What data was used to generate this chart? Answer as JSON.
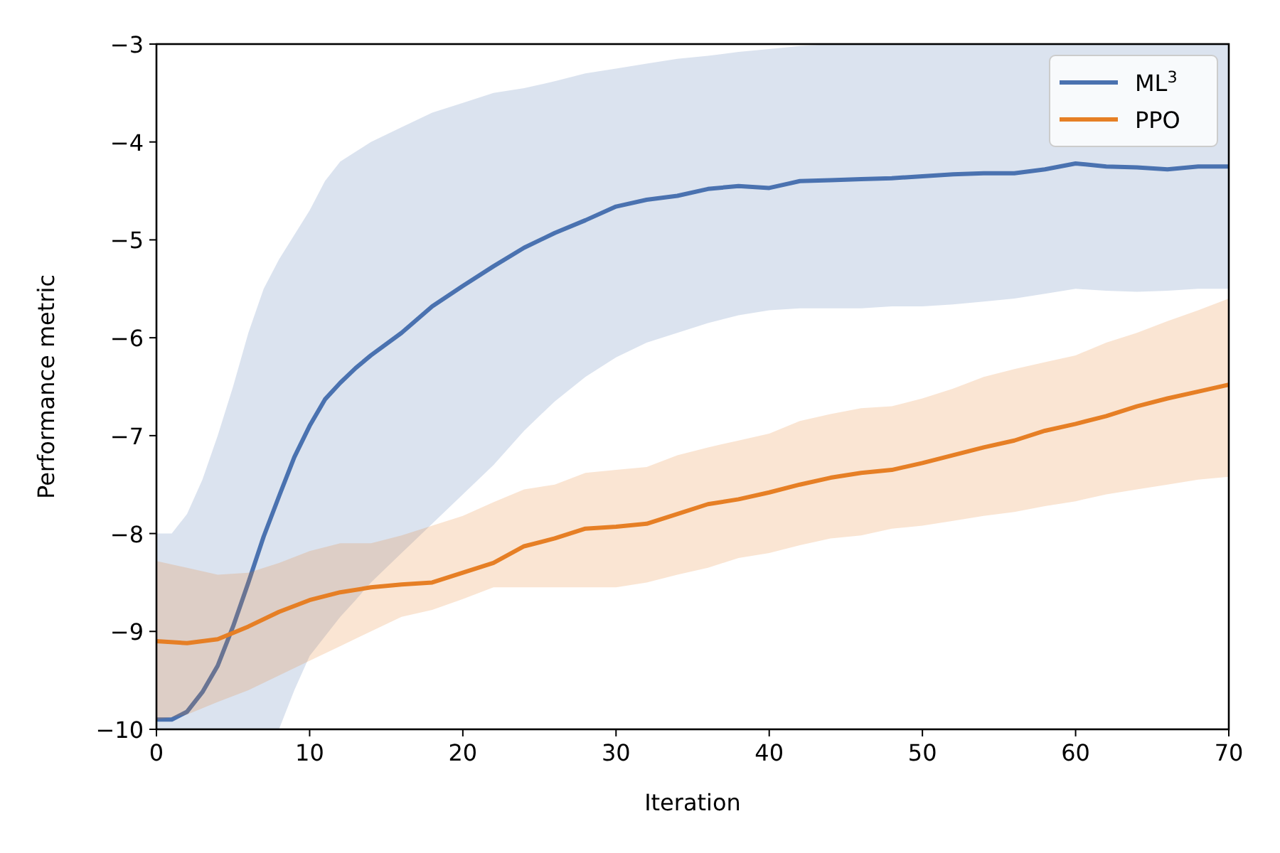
{
  "chart_data": {
    "type": "line",
    "xlabel": "Iteration",
    "ylabel": "Performance metric",
    "xlim": [
      0,
      70
    ],
    "ylim": [
      -10,
      -3
    ],
    "xticks": [
      0,
      10,
      20,
      30,
      40,
      50,
      60,
      70
    ],
    "yticks": [
      -10,
      -9,
      -8,
      -7,
      -6,
      -5,
      -4,
      -3
    ],
    "grid": false,
    "legend": "top right",
    "marker": "none",
    "line_style": "solid",
    "series": [
      {
        "name": "ML$^{3}$",
        "color": "#4a72b0",
        "x": [
          0,
          1,
          2,
          3,
          4,
          5,
          6,
          7,
          8,
          9,
          10,
          11,
          12,
          13,
          14,
          16,
          18,
          20,
          22,
          24,
          26,
          28,
          30,
          32,
          34,
          36,
          38,
          40,
          42,
          44,
          46,
          48,
          50,
          52,
          54,
          56,
          58,
          60,
          62,
          64,
          66,
          68,
          70
        ],
        "values": [
          -9.9,
          -9.9,
          -9.82,
          -9.62,
          -9.35,
          -8.95,
          -8.5,
          -8.03,
          -7.62,
          -7.22,
          -6.9,
          -6.63,
          -6.46,
          -6.31,
          -6.18,
          -5.95,
          -5.68,
          -5.47,
          -5.27,
          -5.08,
          -4.93,
          -4.8,
          -4.66,
          -4.59,
          -4.55,
          -4.48,
          -4.45,
          -4.47,
          -4.4,
          -4.39,
          -4.38,
          -4.37,
          -4.35,
          -4.33,
          -4.32,
          -4.32,
          -4.28,
          -4.22,
          -4.25,
          -4.26,
          -4.28,
          -4.25,
          -4.25
        ],
        "upper": [
          -8.0,
          -8.0,
          -7.8,
          -7.45,
          -7.0,
          -6.5,
          -5.95,
          -5.5,
          -5.2,
          -4.95,
          -4.7,
          -4.4,
          -4.2,
          -4.1,
          -4.0,
          -3.85,
          -3.7,
          -3.6,
          -3.5,
          -3.45,
          -3.38,
          -3.3,
          -3.25,
          -3.2,
          -3.15,
          -3.12,
          -3.08,
          -3.05,
          -3.02,
          -3.0,
          -3.0,
          -3.0,
          -3.0,
          -3.0,
          -3.0,
          -3.0,
          -3.0,
          -3.0,
          -3.0,
          -3.0,
          -3.0,
          -3.0,
          -3.0
        ],
        "lower": [
          -10,
          -10,
          -10,
          -10,
          -10,
          -10,
          -10,
          -10,
          -10,
          -9.6,
          -9.25,
          -9.05,
          -8.85,
          -8.68,
          -8.5,
          -8.2,
          -7.9,
          -7.6,
          -7.3,
          -6.95,
          -6.65,
          -6.4,
          -6.2,
          -6.05,
          -5.95,
          -5.85,
          -5.77,
          -5.72,
          -5.7,
          -5.7,
          -5.7,
          -5.68,
          -5.68,
          -5.66,
          -5.63,
          -5.6,
          -5.55,
          -5.5,
          -5.52,
          -5.53,
          -5.52,
          -5.5,
          -5.5
        ]
      },
      {
        "name": "PPO",
        "color": "#e67f25",
        "x": [
          0,
          2,
          4,
          6,
          8,
          10,
          12,
          14,
          16,
          18,
          20,
          22,
          24,
          26,
          28,
          30,
          32,
          34,
          36,
          38,
          40,
          42,
          44,
          46,
          48,
          50,
          52,
          54,
          56,
          58,
          60,
          62,
          64,
          66,
          68,
          70
        ],
        "values": [
          -9.1,
          -9.12,
          -9.08,
          -8.95,
          -8.8,
          -8.68,
          -8.6,
          -8.55,
          -8.52,
          -8.5,
          -8.4,
          -8.3,
          -8.13,
          -8.05,
          -7.95,
          -7.93,
          -7.9,
          -7.8,
          -7.7,
          -7.65,
          -7.58,
          -7.5,
          -7.43,
          -7.38,
          -7.35,
          -7.28,
          -7.2,
          -7.12,
          -7.05,
          -6.95,
          -6.88,
          -6.8,
          -6.7,
          -6.62,
          -6.55,
          -6.48
        ],
        "upper": [
          -8.28,
          -8.35,
          -8.42,
          -8.4,
          -8.3,
          -8.18,
          -8.1,
          -8.1,
          -8.02,
          -7.92,
          -7.82,
          -7.68,
          -7.55,
          -7.5,
          -7.38,
          -7.35,
          -7.32,
          -7.2,
          -7.12,
          -7.05,
          -6.98,
          -6.85,
          -6.78,
          -6.72,
          -6.7,
          -6.62,
          -6.52,
          -6.4,
          -6.32,
          -6.25,
          -6.18,
          -6.05,
          -5.95,
          -5.83,
          -5.72,
          -5.6
        ],
        "lower": [
          -9.9,
          -9.85,
          -9.72,
          -9.6,
          -9.45,
          -9.3,
          -9.15,
          -9.0,
          -8.85,
          -8.78,
          -8.67,
          -8.55,
          -8.55,
          -8.55,
          -8.55,
          -8.55,
          -8.5,
          -8.42,
          -8.35,
          -8.25,
          -8.2,
          -8.12,
          -8.05,
          -8.02,
          -7.95,
          -7.92,
          -7.87,
          -7.82,
          -7.78,
          -7.72,
          -7.67,
          -7.6,
          -7.55,
          -7.5,
          -7.45,
          -7.42
        ]
      }
    ]
  }
}
